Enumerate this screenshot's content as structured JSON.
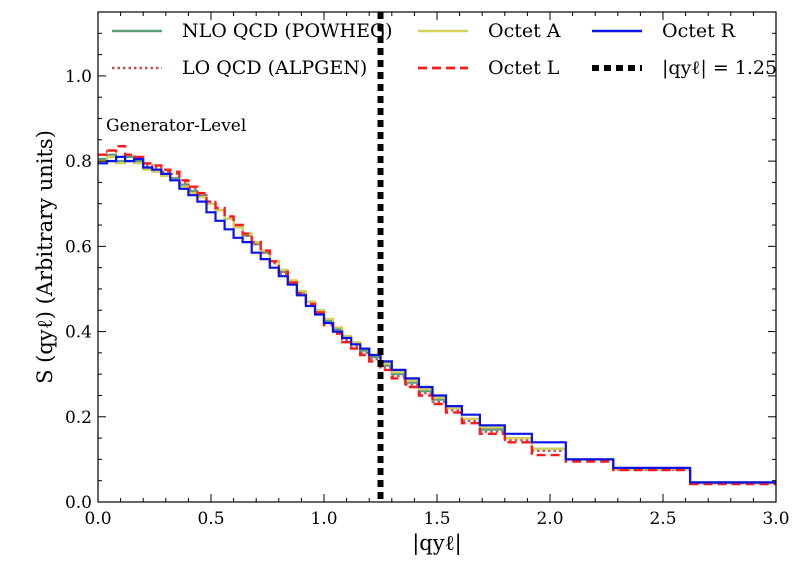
{
  "chart_data": {
    "type": "line",
    "step": true,
    "xlabel": "|qyℓ|",
    "ylabel": "S (qyℓ) (Arbitrary units)",
    "annotation": "Generator-Level",
    "xlim": [
      0.0,
      3.0
    ],
    "ylim": [
      0.0,
      1.15
    ],
    "xticks": [
      "0.0",
      "0.5",
      "1.0",
      "1.5",
      "2.0",
      "2.5",
      "3.0"
    ],
    "yticks": [
      "0.0",
      "0.2",
      "0.4",
      "0.6",
      "0.8",
      "1.0"
    ],
    "grid": false,
    "legend_position": "top",
    "bin_edges": [
      0.0,
      0.04,
      0.08,
      0.12,
      0.16,
      0.2,
      0.24,
      0.28,
      0.32,
      0.36,
      0.4,
      0.44,
      0.48,
      0.52,
      0.56,
      0.6,
      0.64,
      0.68,
      0.72,
      0.76,
      0.8,
      0.84,
      0.88,
      0.92,
      0.96,
      1.0,
      1.04,
      1.08,
      1.12,
      1.16,
      1.2,
      1.25,
      1.3,
      1.36,
      1.42,
      1.48,
      1.54,
      1.61,
      1.69,
      1.8,
      1.92,
      2.07,
      2.28,
      2.62,
      3.0
    ],
    "series": [
      {
        "name": "NLO QCD (POWHEG)",
        "color": "#5f9e7c",
        "dash": "solid",
        "values": [
          0.805,
          0.815,
          0.8,
          0.81,
          0.8,
          0.785,
          0.78,
          0.77,
          0.76,
          0.745,
          0.73,
          0.72,
          0.7,
          0.685,
          0.665,
          0.645,
          0.625,
          0.605,
          0.585,
          0.565,
          0.54,
          0.515,
          0.49,
          0.47,
          0.45,
          0.425,
          0.405,
          0.385,
          0.37,
          0.355,
          0.34,
          0.32,
          0.3,
          0.28,
          0.26,
          0.24,
          0.22,
          0.195,
          0.17,
          0.15,
          0.125,
          0.1,
          0.078,
          0.045
        ]
      },
      {
        "name": "LO QCD (ALPGEN)",
        "color": "#c0504d",
        "dash": "dotted",
        "values": [
          0.815,
          0.825,
          0.81,
          0.815,
          0.805,
          0.79,
          0.785,
          0.775,
          0.77,
          0.75,
          0.735,
          0.72,
          0.705,
          0.685,
          0.665,
          0.645,
          0.625,
          0.605,
          0.585,
          0.56,
          0.535,
          0.515,
          0.49,
          0.465,
          0.445,
          0.42,
          0.4,
          0.38,
          0.365,
          0.35,
          0.335,
          0.315,
          0.295,
          0.275,
          0.255,
          0.235,
          0.215,
          0.19,
          0.165,
          0.145,
          0.12,
          0.1,
          0.075,
          0.044
        ]
      },
      {
        "name": "Octet A",
        "color": "#d4cf5a",
        "dash": "solid",
        "values": [
          0.8,
          0.81,
          0.795,
          0.8,
          0.795,
          0.78,
          0.775,
          0.765,
          0.755,
          0.74,
          0.725,
          0.715,
          0.7,
          0.685,
          0.665,
          0.645,
          0.63,
          0.61,
          0.59,
          0.565,
          0.545,
          0.52,
          0.495,
          0.47,
          0.45,
          0.43,
          0.41,
          0.39,
          0.375,
          0.36,
          0.345,
          0.325,
          0.305,
          0.285,
          0.265,
          0.245,
          0.22,
          0.195,
          0.175,
          0.15,
          0.125,
          0.1,
          0.078,
          0.046
        ]
      },
      {
        "name": "Octet L",
        "color": "#ff1a1a",
        "dash": "dashed",
        "values": [
          0.815,
          0.825,
          0.835,
          0.815,
          0.81,
          0.795,
          0.79,
          0.78,
          0.775,
          0.755,
          0.74,
          0.725,
          0.705,
          0.69,
          0.67,
          0.65,
          0.63,
          0.61,
          0.59,
          0.565,
          0.54,
          0.515,
          0.49,
          0.465,
          0.445,
          0.415,
          0.395,
          0.375,
          0.36,
          0.345,
          0.33,
          0.31,
          0.29,
          0.27,
          0.25,
          0.23,
          0.21,
          0.185,
          0.16,
          0.14,
          0.11,
          0.095,
          0.075,
          0.042
        ]
      },
      {
        "name": "Octet R",
        "color": "#0a14e6",
        "dash": "solid",
        "values": [
          0.795,
          0.8,
          0.81,
          0.8,
          0.805,
          0.785,
          0.78,
          0.77,
          0.755,
          0.735,
          0.72,
          0.705,
          0.68,
          0.66,
          0.64,
          0.62,
          0.61,
          0.585,
          0.57,
          0.55,
          0.53,
          0.51,
          0.485,
          0.46,
          0.44,
          0.42,
          0.4,
          0.385,
          0.37,
          0.36,
          0.345,
          0.33,
          0.31,
          0.29,
          0.27,
          0.25,
          0.225,
          0.205,
          0.18,
          0.16,
          0.14,
          0.1,
          0.08,
          0.046
        ]
      }
    ],
    "vline": {
      "name": "|qyℓ| = 1.25",
      "x": 1.25,
      "color": "#000000"
    }
  }
}
